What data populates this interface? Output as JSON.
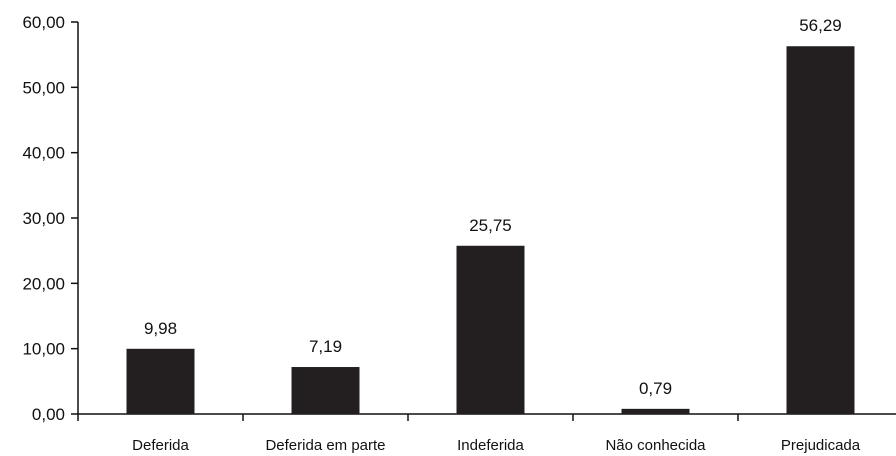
{
  "chart_data": {
    "type": "bar",
    "categories": [
      "Deferida",
      "Deferida em parte",
      "Indeferida",
      "Não conhecida",
      "Prejudicada"
    ],
    "values": [
      9.98,
      7.19,
      25.75,
      0.79,
      56.29
    ],
    "value_labels": [
      "9,98",
      "7,19",
      "25,75",
      "0,79",
      "56,29"
    ],
    "y_ticks": [
      0,
      10,
      20,
      30,
      40,
      50,
      60
    ],
    "y_tick_labels": [
      "0,00",
      "10,00",
      "20,00",
      "30,00",
      "40,00",
      "50,00",
      "60,00"
    ],
    "ylim": [
      0,
      60
    ],
    "title": "",
    "xlabel": "",
    "ylabel": "",
    "grid": false,
    "legend": "none",
    "bar_color": "#231f20"
  }
}
